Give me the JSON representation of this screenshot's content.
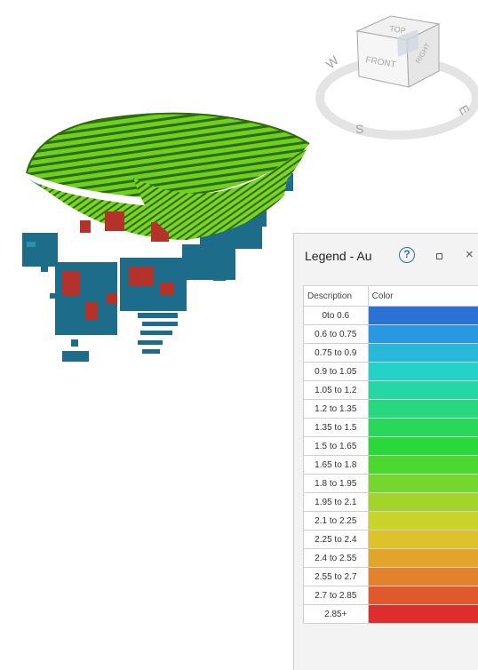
{
  "nav_cube": {
    "face_top": "TOP",
    "face_front": "FRONT",
    "face_right": "RIGHT",
    "compass_s": "S",
    "compass_e": "E",
    "compass_w": "W"
  },
  "legend": {
    "title": "Legend - Au",
    "help_label": "?",
    "close_label": "×",
    "columns": {
      "description": "Description",
      "color": "Color"
    },
    "rows": [
      {
        "label": "0to 0.6",
        "color": "#2a72d6"
      },
      {
        "label": "0.6 to 0.75",
        "color": "#2a98e0"
      },
      {
        "label": "0.75 to 0.9",
        "color": "#26b9da"
      },
      {
        "label": "0.9 to 1.05",
        "color": "#24d2c6"
      },
      {
        "label": "1.05 to 1.2",
        "color": "#25d7a4"
      },
      {
        "label": "1.2 to 1.35",
        "color": "#27d880"
      },
      {
        "label": "1.35 to 1.5",
        "color": "#27d85a"
      },
      {
        "label": "1.5 to 1.65",
        "color": "#2ad83c"
      },
      {
        "label": "1.65 to 1.8",
        "color": "#4bd92e"
      },
      {
        "label": "1.8 to 1.95",
        "color": "#74d62e"
      },
      {
        "label": "1.95 to 2.1",
        "color": "#a2d42c"
      },
      {
        "label": "2.1 to 2.25",
        "color": "#c9d32a"
      },
      {
        "label": "2.25 to 2.4",
        "color": "#ddc22a"
      },
      {
        "label": "2.4 to 2.55",
        "color": "#e2a52a"
      },
      {
        "label": "2.55 to 2.7",
        "color": "#e2832b"
      },
      {
        "label": "2.7 to 2.85",
        "color": "#e0582b"
      },
      {
        "label": "2.85+",
        "color": "#de2d2d"
      }
    ]
  },
  "colors": {
    "model_green": "#6fd11f",
    "model_dark_green": "#2f6b0b",
    "block_blue": "#1d6c8a",
    "block_red": "#b3332a"
  }
}
